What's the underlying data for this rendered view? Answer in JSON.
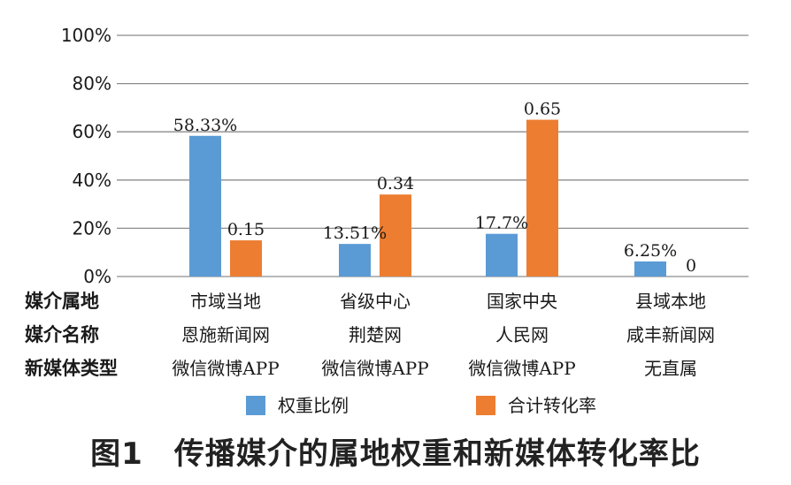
{
  "chart_data": {
    "type": "bar",
    "ylim": [
      0,
      100
    ],
    "ytick_values": [
      0,
      20,
      40,
      60,
      80,
      100
    ],
    "yticks": [
      "0%",
      "20%",
      "40%",
      "60%",
      "80%",
      "100%"
    ],
    "grid": true,
    "legend_position": "bottom",
    "categories": [
      "市域当地",
      "省级中心",
      "国家中央",
      "县域本地"
    ],
    "series": [
      {
        "name": "权重比例",
        "color": "#5b9bd5",
        "values": [
          58.33,
          13.51,
          17.7,
          6.25
        ],
        "labels": [
          "58.33%",
          "13.51%",
          "17.7%",
          "6.25%"
        ]
      },
      {
        "name": "合计转化率",
        "color": "#ed7d31",
        "values": [
          15,
          34,
          65,
          0
        ],
        "labels": [
          "0.15",
          "0.34",
          "0.65",
          "0"
        ]
      }
    ],
    "table": {
      "row_headers": [
        "媒介属地",
        "媒介名称",
        "新媒体类型"
      ],
      "rows": [
        [
          "市域当地",
          "省级中心",
          "国家中央",
          "县域本地"
        ],
        [
          "恩施新闻网",
          "荆楚网",
          "人民网",
          "咸丰新闻网"
        ],
        [
          "微信微博APP",
          "微信微博APP",
          "微信微博APP",
          "无直属"
        ]
      ]
    }
  },
  "caption": "图1　传播媒介的属地权重和新媒体转化率比"
}
